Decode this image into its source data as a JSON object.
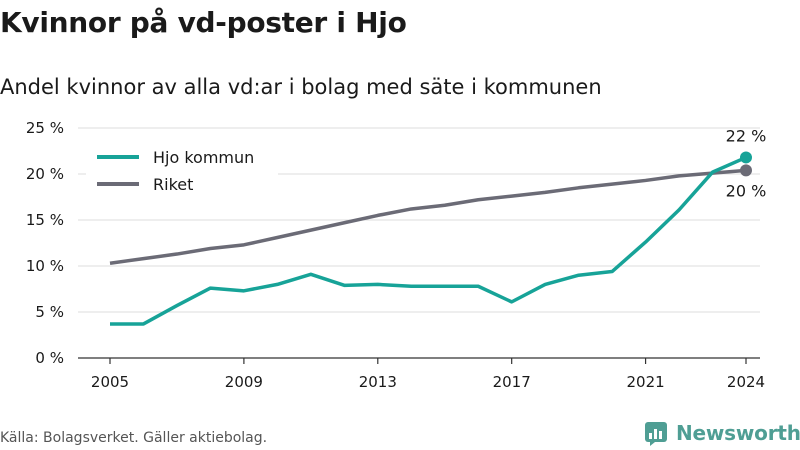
{
  "title": "Kvinnor på vd-poster i Hjo",
  "subtitle": "Andel kvinnor av alla vd:ar i bolag med säte i kommunen",
  "source": "Källa: Bolagsverket. Gäller aktiebolag.",
  "brand": "Newsworthy",
  "colors": {
    "hjo": "#17a398",
    "riket": "#6b6b76",
    "grid": "#dddddd",
    "axis": "#333333",
    "brand": "#4f9e94"
  },
  "chart_data": {
    "type": "line",
    "x": [
      2005,
      2006,
      2007,
      2008,
      2009,
      2010,
      2011,
      2012,
      2013,
      2014,
      2015,
      2016,
      2017,
      2018,
      2019,
      2020,
      2021,
      2022,
      2023,
      2024
    ],
    "x_ticks": [
      2005,
      2009,
      2013,
      2017,
      2021,
      2024
    ],
    "x_tick_labels": [
      "2005",
      "2009",
      "2013",
      "2017",
      "2021",
      "2024"
    ],
    "y_ticks": [
      0,
      5,
      10,
      15,
      20,
      25
    ],
    "y_tick_labels": [
      "0 %",
      "5 %",
      "10 %",
      "15 %",
      "20 %",
      "25 %"
    ],
    "xlim": [
      2005,
      2024
    ],
    "ylim": [
      0,
      25
    ],
    "grid": "horizontal",
    "legend": "top-left",
    "series": [
      {
        "name": "Hjo kommun",
        "color_key": "hjo",
        "values": [
          3.7,
          3.7,
          5.7,
          7.6,
          7.3,
          8.0,
          9.1,
          7.9,
          8.0,
          7.8,
          7.8,
          7.8,
          6.1,
          8.0,
          9.0,
          9.4,
          12.6,
          16.1,
          20.2,
          21.8
        ],
        "end_label": "22 %"
      },
      {
        "name": "Riket",
        "color_key": "riket",
        "values": [
          10.3,
          10.8,
          11.3,
          11.9,
          12.3,
          13.1,
          13.9,
          14.7,
          15.5,
          16.2,
          16.6,
          17.2,
          17.6,
          18.0,
          18.5,
          18.9,
          19.3,
          19.8,
          20.1,
          20.4
        ],
        "end_label": "20 %"
      }
    ]
  }
}
